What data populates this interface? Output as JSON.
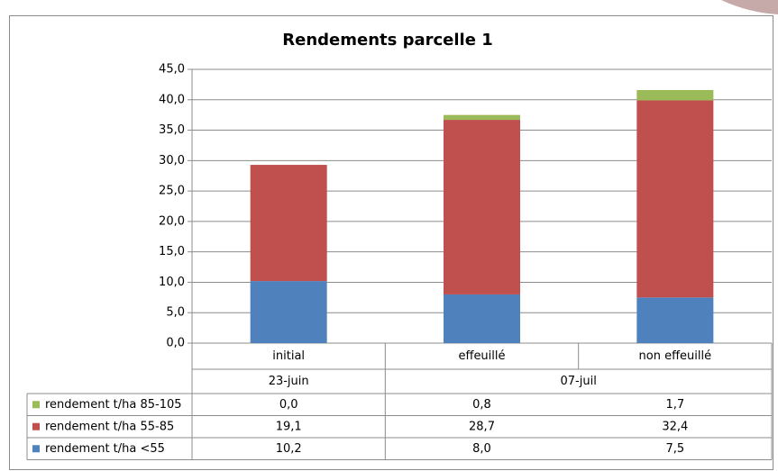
{
  "chart_data": {
    "type": "stacked_bar",
    "title": "Rendements parcelle 1",
    "categories": [
      "initial",
      "effeuillé",
      "non effeuillé"
    ],
    "category_groups": [
      {
        "label": "23-juin",
        "size": 1
      },
      {
        "label": "07-juil",
        "size": 2
      }
    ],
    "series": [
      {
        "name": "rendement t/ha <55",
        "color": "#4f81bd",
        "values": [
          10.2,
          8.0,
          7.5
        ],
        "value_labels": [
          "10,2",
          "8,0",
          "7,5"
        ]
      },
      {
        "name": "rendement t/ha 55-85",
        "color": "#c0504d",
        "values": [
          19.1,
          28.7,
          32.4
        ],
        "value_labels": [
          "19,1",
          "28,7",
          "32,4"
        ]
      },
      {
        "name": "rendement t/ha 85-105",
        "color": "#9bbb59",
        "values": [
          0.0,
          0.8,
          1.7
        ],
        "value_labels": [
          "0,0",
          "0,8",
          "1,7"
        ]
      }
    ],
    "ylim": [
      0,
      45
    ],
    "yticks": [
      {
        "value": 0,
        "label": "0,0"
      },
      {
        "value": 5,
        "label": "5,0"
      },
      {
        "value": 10,
        "label": "10,0"
      },
      {
        "value": 15,
        "label": "15,0"
      },
      {
        "value": 20,
        "label": "20,0"
      },
      {
        "value": 25,
        "label": "25,0"
      },
      {
        "value": 30,
        "label": "30,0"
      },
      {
        "value": 35,
        "label": "35,0"
      },
      {
        "value": 40,
        "label": "40,0"
      },
      {
        "value": 45,
        "label": "45,0"
      }
    ],
    "grid": true
  }
}
